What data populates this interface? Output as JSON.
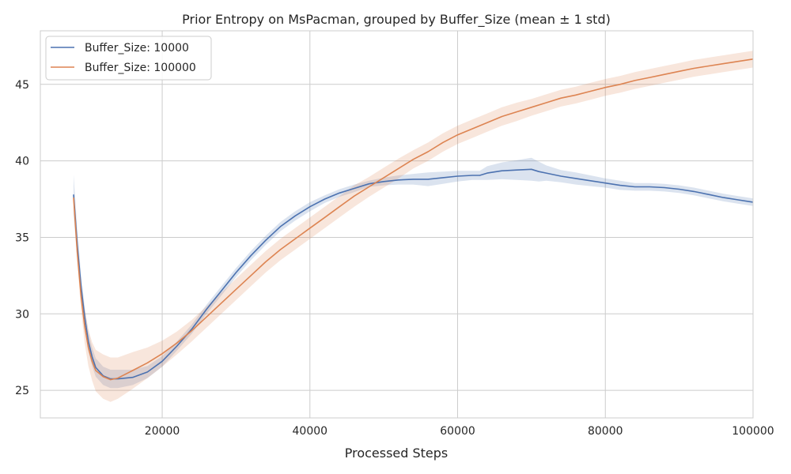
{
  "chart_data": {
    "type": "line",
    "title": "Prior Entropy on MsPacman, grouped by Buffer_Size (mean ± 1 std)",
    "xlabel": "Processed Steps",
    "ylabel": "",
    "xlim": [
      3500,
      100000
    ],
    "ylim": [
      23.2,
      48.5
    ],
    "xticks": [
      20000,
      40000,
      60000,
      80000,
      100000
    ],
    "yticks": [
      25,
      30,
      35,
      40,
      45
    ],
    "xtick_labels": [
      "20000",
      "40000",
      "60000",
      "80000",
      "100000"
    ],
    "ytick_labels": [
      "25",
      "30",
      "35",
      "40",
      "45"
    ],
    "grid": true,
    "legend_position": "top-left",
    "series": [
      {
        "name": "Buffer_Size: 10000",
        "color": "#4c72b0",
        "x": [
          8000,
          8500,
          9000,
          9500,
          10000,
          10500,
          11000,
          12000,
          13000,
          14000,
          16000,
          18000,
          20000,
          22000,
          24000,
          26000,
          28000,
          30000,
          32000,
          34000,
          36000,
          38000,
          40000,
          42000,
          44000,
          46000,
          48000,
          50000,
          52000,
          54000,
          56000,
          58000,
          60000,
          62000,
          63000,
          64000,
          66000,
          68000,
          70000,
          71000,
          72000,
          74000,
          76000,
          78000,
          80000,
          82000,
          84000,
          86000,
          88000,
          90000,
          92000,
          94000,
          96000,
          98000,
          100000
        ],
        "y": [
          37.8,
          34.5,
          31.8,
          29.8,
          28.2,
          27.2,
          26.5,
          25.95,
          25.75,
          25.75,
          25.85,
          26.2,
          26.9,
          27.9,
          29.0,
          30.3,
          31.5,
          32.7,
          33.8,
          34.8,
          35.7,
          36.4,
          37.0,
          37.5,
          37.9,
          38.2,
          38.5,
          38.65,
          38.75,
          38.8,
          38.8,
          38.9,
          39.0,
          39.05,
          39.05,
          39.2,
          39.35,
          39.4,
          39.45,
          39.3,
          39.2,
          39.0,
          38.85,
          38.7,
          38.55,
          38.4,
          38.3,
          38.3,
          38.25,
          38.15,
          38.0,
          37.8,
          37.6,
          37.45,
          37.3
        ],
        "std": [
          1.3,
          1.0,
          0.8,
          0.7,
          0.65,
          0.6,
          0.6,
          0.6,
          0.6,
          0.6,
          0.5,
          0.4,
          0.35,
          0.3,
          0.3,
          0.3,
          0.3,
          0.3,
          0.3,
          0.3,
          0.3,
          0.3,
          0.3,
          0.25,
          0.25,
          0.25,
          0.2,
          0.25,
          0.3,
          0.35,
          0.45,
          0.4,
          0.35,
          0.3,
          0.3,
          0.45,
          0.55,
          0.65,
          0.75,
          0.65,
          0.5,
          0.4,
          0.4,
          0.35,
          0.3,
          0.3,
          0.25,
          0.25,
          0.25,
          0.25,
          0.25,
          0.25,
          0.25,
          0.25,
          0.25
        ]
      },
      {
        "name": "Buffer_Size: 100000",
        "color": "#dd8452",
        "x": [
          8000,
          8500,
          9000,
          9500,
          10000,
          10500,
          11000,
          12000,
          13000,
          14000,
          16000,
          18000,
          20000,
          22000,
          24000,
          26000,
          28000,
          30000,
          32000,
          34000,
          36000,
          38000,
          40000,
          42000,
          44000,
          46000,
          48000,
          50000,
          52000,
          54000,
          56000,
          58000,
          60000,
          62000,
          64000,
          66000,
          68000,
          70000,
          72000,
          74000,
          76000,
          78000,
          80000,
          82000,
          84000,
          86000,
          88000,
          90000,
          92000,
          94000,
          96000,
          98000,
          100000
        ],
        "y": [
          37.6,
          34.0,
          31.2,
          29.2,
          27.8,
          26.9,
          26.3,
          25.9,
          25.7,
          25.8,
          26.3,
          26.8,
          27.4,
          28.1,
          28.9,
          29.8,
          30.7,
          31.6,
          32.5,
          33.4,
          34.2,
          34.9,
          35.6,
          36.3,
          37.0,
          37.7,
          38.3,
          38.9,
          39.5,
          40.1,
          40.6,
          41.2,
          41.7,
          42.1,
          42.5,
          42.9,
          43.2,
          43.5,
          43.8,
          44.1,
          44.3,
          44.55,
          44.8,
          45.0,
          45.25,
          45.45,
          45.65,
          45.85,
          46.05,
          46.2,
          46.35,
          46.5,
          46.65
        ],
        "std": [
          0.3,
          0.6,
          0.9,
          1.1,
          1.2,
          1.25,
          1.35,
          1.45,
          1.45,
          1.35,
          1.2,
          1.0,
          0.85,
          0.75,
          0.7,
          0.7,
          0.7,
          0.7,
          0.7,
          0.7,
          0.7,
          0.7,
          0.7,
          0.7,
          0.7,
          0.7,
          0.65,
          0.65,
          0.65,
          0.6,
          0.6,
          0.6,
          0.6,
          0.6,
          0.6,
          0.6,
          0.6,
          0.55,
          0.55,
          0.55,
          0.55,
          0.55,
          0.55,
          0.55,
          0.55,
          0.55,
          0.55,
          0.55,
          0.55,
          0.55,
          0.55,
          0.55,
          0.55
        ]
      }
    ]
  }
}
